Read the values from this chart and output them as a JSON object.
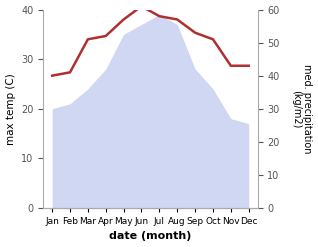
{
  "months": [
    "Jan",
    "Feb",
    "Mar",
    "Apr",
    "May",
    "Jun",
    "Jul",
    "Aug",
    "Sep",
    "Oct",
    "Nov",
    "Dec"
  ],
  "x": [
    0,
    1,
    2,
    3,
    4,
    5,
    6,
    7,
    8,
    9,
    10,
    11
  ],
  "max_temp": [
    20,
    21,
    24,
    28,
    35,
    37,
    39,
    37,
    28,
    24,
    18,
    17
  ],
  "precipitation": [
    40,
    41,
    51,
    52,
    57,
    61,
    58,
    57,
    53,
    51,
    43,
    43
  ],
  "temp_fill_color": "#c8d0f0",
  "temp_fill_alpha": 0.85,
  "precip_color": "#b03030",
  "precip_linewidth": 1.8,
  "temp_ylim": [
    0,
    40
  ],
  "precip_ylim": [
    0,
    60
  ],
  "temp_yticks": [
    0,
    10,
    20,
    30,
    40
  ],
  "precip_yticks": [
    0,
    10,
    20,
    30,
    40,
    50,
    60
  ],
  "xlabel": "date (month)",
  "ylabel_left": "max temp (C)",
  "ylabel_right": "med. precipitation\n(kg/m2)",
  "bg_color": "#ffffff",
  "tick_color": "#555555",
  "spine_color": "#aaaaaa"
}
